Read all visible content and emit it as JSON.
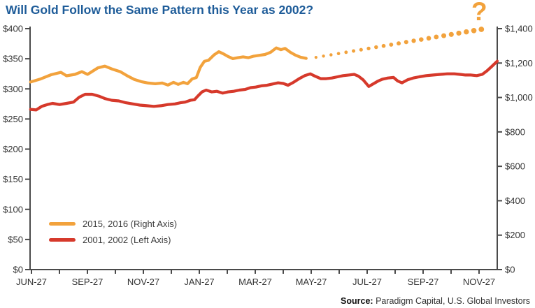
{
  "header": {
    "title": "Will Gold Follow the Same Pattern this Year as 2002?"
  },
  "source": {
    "label": "Source:",
    "text": " Paradigm Capital, U.S. Global Investors"
  },
  "colors": {
    "orange": "#F2A23C",
    "red": "#D6392B",
    "title_blue": "#1E5C99",
    "axis_line": "#4A4A4A",
    "axis_text": "#333333"
  },
  "legend": [
    {
      "label": "2015, 2016 (Right Axis)",
      "color": "#F2A23C"
    },
    {
      "label": "2001, 2002 (Left Axis)",
      "color": "#D6392B"
    }
  ],
  "chart_data": {
    "type": "line",
    "title": "Will Gold Follow the Same Pattern this Year as 2002?",
    "x_tick_labels": [
      "JUN-27",
      "SEP-27",
      "NOV-27",
      "JAN-27",
      "MAR-27",
      "MAY-27",
      "JUL-27",
      "SEP-27",
      "NOV-27"
    ],
    "left_axis": {
      "min": 0,
      "max": 400,
      "tick_step": 50,
      "tick_values": [
        0,
        50,
        100,
        150,
        200,
        250,
        300,
        350,
        400
      ],
      "tick_labels": [
        "$0",
        "$50",
        "$100",
        "$150",
        "$200",
        "$250",
        "$300",
        "$350",
        "$400"
      ]
    },
    "right_axis": {
      "min": 0,
      "max": 1400,
      "tick_step": 200,
      "tick_values": [
        0,
        200,
        400,
        600,
        800,
        1000,
        1200,
        1400
      ],
      "tick_labels": [
        "$0",
        "$200",
        "$400",
        "$600",
        "$800",
        "$1,000",
        "$1,200",
        "$1,400"
      ]
    },
    "grid": false,
    "legend_position": "lower-left",
    "annotation": {
      "text": "?",
      "color": "#F2A23C"
    },
    "series": [
      {
        "name": "2015, 2016 (Right Axis)",
        "axis": "right",
        "style": "solid",
        "color": "#F2A23C",
        "points": [
          [
            0.001,
            1090
          ],
          [
            0.021,
            1106
          ],
          [
            0.045,
            1132
          ],
          [
            0.066,
            1146
          ],
          [
            0.078,
            1126
          ],
          [
            0.096,
            1134
          ],
          [
            0.111,
            1150
          ],
          [
            0.123,
            1134
          ],
          [
            0.145,
            1172
          ],
          [
            0.16,
            1182
          ],
          [
            0.175,
            1166
          ],
          [
            0.193,
            1150
          ],
          [
            0.208,
            1126
          ],
          [
            0.223,
            1105
          ],
          [
            0.238,
            1092
          ],
          [
            0.253,
            1084
          ],
          [
            0.268,
            1080
          ],
          [
            0.283,
            1084
          ],
          [
            0.295,
            1072
          ],
          [
            0.307,
            1088
          ],
          [
            0.317,
            1076
          ],
          [
            0.328,
            1088
          ],
          [
            0.337,
            1080
          ],
          [
            0.347,
            1108
          ],
          [
            0.356,
            1116
          ],
          [
            0.364,
            1174
          ],
          [
            0.373,
            1210
          ],
          [
            0.382,
            1216
          ],
          [
            0.394,
            1248
          ],
          [
            0.404,
            1266
          ],
          [
            0.414,
            1253
          ],
          [
            0.424,
            1238
          ],
          [
            0.434,
            1226
          ],
          [
            0.445,
            1231
          ],
          [
            0.456,
            1236
          ],
          [
            0.467,
            1231
          ],
          [
            0.479,
            1240
          ],
          [
            0.491,
            1245
          ],
          [
            0.503,
            1250
          ],
          [
            0.515,
            1263
          ],
          [
            0.527,
            1288
          ],
          [
            0.537,
            1278
          ],
          [
            0.546,
            1285
          ],
          [
            0.557,
            1263
          ],
          [
            0.568,
            1246
          ],
          [
            0.579,
            1234
          ],
          [
            0.591,
            1227
          ]
        ]
      },
      {
        "name": "2016 projection",
        "axis": "right",
        "style": "dotted",
        "color": "#F2A23C",
        "points": [
          [
            0.612,
            1233
          ],
          [
            0.966,
            1396
          ]
        ]
      },
      {
        "name": "2001, 2002 (Left Axis)",
        "axis": "left",
        "style": "solid",
        "color": "#D6392B",
        "points": [
          [
            0.001,
            266
          ],
          [
            0.013,
            265
          ],
          [
            0.025,
            271
          ],
          [
            0.037,
            274
          ],
          [
            0.048,
            276
          ],
          [
            0.063,
            274
          ],
          [
            0.078,
            276
          ],
          [
            0.093,
            278
          ],
          [
            0.105,
            286
          ],
          [
            0.118,
            291
          ],
          [
            0.133,
            291
          ],
          [
            0.147,
            288
          ],
          [
            0.16,
            284
          ],
          [
            0.175,
            281
          ],
          [
            0.19,
            280
          ],
          [
            0.205,
            277
          ],
          [
            0.22,
            275
          ],
          [
            0.235,
            273
          ],
          [
            0.25,
            272
          ],
          [
            0.265,
            271
          ],
          [
            0.28,
            272
          ],
          [
            0.295,
            274
          ],
          [
            0.31,
            275
          ],
          [
            0.322,
            277
          ],
          [
            0.332,
            278
          ],
          [
            0.343,
            281
          ],
          [
            0.352,
            282
          ],
          [
            0.359,
            288
          ],
          [
            0.368,
            295
          ],
          [
            0.377,
            298
          ],
          [
            0.389,
            295
          ],
          [
            0.4,
            296
          ],
          [
            0.412,
            293
          ],
          [
            0.424,
            295
          ],
          [
            0.436,
            296
          ],
          [
            0.448,
            298
          ],
          [
            0.46,
            299
          ],
          [
            0.472,
            302
          ],
          [
            0.483,
            303
          ],
          [
            0.495,
            305
          ],
          [
            0.507,
            306
          ],
          [
            0.519,
            308
          ],
          [
            0.531,
            310
          ],
          [
            0.542,
            309
          ],
          [
            0.552,
            306
          ],
          [
            0.564,
            311
          ],
          [
            0.576,
            317
          ],
          [
            0.588,
            322
          ],
          [
            0.6,
            325
          ],
          [
            0.61,
            321
          ],
          [
            0.622,
            317
          ],
          [
            0.634,
            317
          ],
          [
            0.646,
            318
          ],
          [
            0.658,
            320
          ],
          [
            0.67,
            322
          ],
          [
            0.682,
            323
          ],
          [
            0.694,
            324
          ],
          [
            0.703,
            321
          ],
          [
            0.713,
            315
          ],
          [
            0.725,
            304
          ],
          [
            0.734,
            308
          ],
          [
            0.745,
            313
          ],
          [
            0.754,
            316
          ],
          [
            0.766,
            318
          ],
          [
            0.778,
            319
          ],
          [
            0.787,
            313
          ],
          [
            0.796,
            310
          ],
          [
            0.808,
            315
          ],
          [
            0.82,
            318
          ],
          [
            0.833,
            320
          ],
          [
            0.848,
            322
          ],
          [
            0.863,
            323
          ],
          [
            0.878,
            324
          ],
          [
            0.893,
            325
          ],
          [
            0.908,
            325
          ],
          [
            0.92,
            324
          ],
          [
            0.932,
            323
          ],
          [
            0.944,
            323
          ],
          [
            0.956,
            322
          ],
          [
            0.968,
            324
          ],
          [
            0.978,
            330
          ],
          [
            0.988,
            337
          ],
          [
            1.0,
            346
          ]
        ]
      }
    ]
  }
}
